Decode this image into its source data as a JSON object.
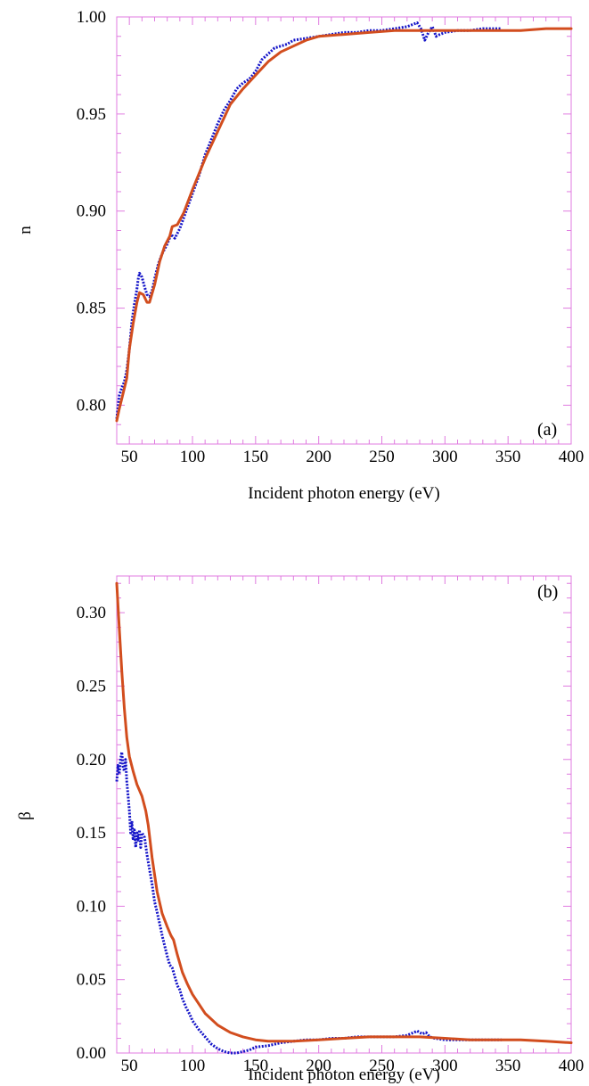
{
  "colors": {
    "frame": "#e07be0",
    "tick": "#e07be0",
    "measured": "#1414c8",
    "fit": "#d24d1e"
  },
  "chart_data": [
    {
      "type": "line",
      "panel_label": "(a)",
      "xlabel": "Incident photon energy (eV)",
      "ylabel": "n",
      "xlim": [
        40,
        400
      ],
      "ylim": [
        0.78,
        1.0
      ],
      "x_ticks": [
        50,
        100,
        150,
        200,
        250,
        300,
        350,
        400
      ],
      "x_tick_labels": [
        "50",
        "100",
        "150",
        "200",
        "250",
        "300",
        "350",
        "400"
      ],
      "y_ticks": [
        0.8,
        0.85,
        0.9,
        0.95,
        1.0
      ],
      "y_tick_labels": [
        "0.80",
        "0.85",
        "0.90",
        "0.95",
        "1.00"
      ],
      "grid": false,
      "series": [
        {
          "style": "dotted",
          "color": "#1414c8",
          "points": [
            [
              40,
              0.793
            ],
            [
              42,
              0.805
            ],
            [
              44,
              0.809
            ],
            [
              46,
              0.812
            ],
            [
              48,
              0.818
            ],
            [
              50,
              0.829
            ],
            [
              52,
              0.843
            ],
            [
              54,
              0.852
            ],
            [
              56,
              0.86
            ],
            [
              57,
              0.865
            ],
            [
              58,
              0.868
            ],
            [
              60,
              0.866
            ],
            [
              62,
              0.861
            ],
            [
              64,
              0.857
            ],
            [
              66,
              0.856
            ],
            [
              68,
              0.859
            ],
            [
              70,
              0.865
            ],
            [
              73,
              0.873
            ],
            [
              76,
              0.878
            ],
            [
              80,
              0.883
            ],
            [
              83,
              0.888
            ],
            [
              86,
              0.886
            ],
            [
              90,
              0.891
            ],
            [
              95,
              0.9
            ],
            [
              100,
              0.909
            ],
            [
              105,
              0.918
            ],
            [
              110,
              0.929
            ],
            [
              115,
              0.937
            ],
            [
              120,
              0.945
            ],
            [
              125,
              0.952
            ],
            [
              130,
              0.957
            ],
            [
              135,
              0.963
            ],
            [
              140,
              0.966
            ],
            [
              145,
              0.968
            ],
            [
              150,
              0.972
            ],
            [
              155,
              0.978
            ],
            [
              160,
              0.981
            ],
            [
              165,
              0.984
            ],
            [
              170,
              0.985
            ],
            [
              175,
              0.986
            ],
            [
              180,
              0.988
            ],
            [
              190,
              0.989
            ],
            [
              200,
              0.99
            ],
            [
              210,
              0.991
            ],
            [
              220,
              0.992
            ],
            [
              230,
              0.992
            ],
            [
              240,
              0.993
            ],
            [
              250,
              0.993
            ],
            [
              260,
              0.994
            ],
            [
              270,
              0.995
            ],
            [
              278,
              0.997
            ],
            [
              281,
              0.994
            ],
            [
              284,
              0.988
            ],
            [
              287,
              0.992
            ],
            [
              290,
              0.995
            ],
            [
              293,
              0.99
            ],
            [
              296,
              0.991
            ],
            [
              300,
              0.992
            ],
            [
              310,
              0.993
            ],
            [
              320,
              0.993
            ],
            [
              330,
              0.994
            ],
            [
              340,
              0.994
            ],
            [
              345,
              0.994
            ]
          ]
        },
        {
          "style": "solid",
          "color": "#d24d1e",
          "points": [
            [
              40,
              0.792
            ],
            [
              42,
              0.798
            ],
            [
              45,
              0.806
            ],
            [
              48,
              0.814
            ],
            [
              50,
              0.829
            ],
            [
              53,
              0.842
            ],
            [
              56,
              0.853
            ],
            [
              58,
              0.858
            ],
            [
              61,
              0.857
            ],
            [
              64,
              0.853
            ],
            [
              66,
              0.853
            ],
            [
              70,
              0.862
            ],
            [
              74,
              0.874
            ],
            [
              78,
              0.882
            ],
            [
              82,
              0.887
            ],
            [
              84,
              0.892
            ],
            [
              88,
              0.893
            ],
            [
              93,
              0.899
            ],
            [
              100,
              0.911
            ],
            [
              110,
              0.927
            ],
            [
              120,
              0.941
            ],
            [
              130,
              0.955
            ],
            [
              140,
              0.963
            ],
            [
              150,
              0.97
            ],
            [
              160,
              0.977
            ],
            [
              170,
              0.982
            ],
            [
              180,
              0.985
            ],
            [
              190,
              0.988
            ],
            [
              200,
              0.99
            ],
            [
              220,
              0.991
            ],
            [
              240,
              0.992
            ],
            [
              260,
              0.993
            ],
            [
              280,
              0.993
            ],
            [
              300,
              0.993
            ],
            [
              320,
              0.993
            ],
            [
              340,
              0.993
            ],
            [
              360,
              0.993
            ],
            [
              380,
              0.994
            ],
            [
              400,
              0.994
            ]
          ]
        }
      ]
    },
    {
      "type": "line",
      "panel_label": "(b)",
      "xlabel": "Incident photon energy (eV)",
      "ylabel": "β",
      "xlim": [
        40,
        400
      ],
      "ylim": [
        0,
        0.325
      ],
      "x_ticks": [
        50,
        100,
        150,
        200,
        250,
        300,
        350,
        400
      ],
      "x_tick_labels": [
        "50",
        "100",
        "150",
        "200",
        "250",
        "300",
        "350",
        "400"
      ],
      "y_ticks": [
        0,
        0.05,
        0.1,
        0.15,
        0.2,
        0.25,
        0.3
      ],
      "y_tick_labels": [
        "0.00",
        "0.05",
        "0.10",
        "0.15",
        "0.20",
        "0.25",
        "0.30"
      ],
      "grid": false,
      "series": [
        {
          "style": "dotted",
          "color": "#1414c8",
          "points": [
            [
              40,
              0.185
            ],
            [
              41,
              0.196
            ],
            [
              42,
              0.19
            ],
            [
              43,
              0.2
            ],
            [
              44,
              0.205
            ],
            [
              45,
              0.195
            ],
            [
              46,
              0.192
            ],
            [
              47,
              0.2
            ],
            [
              48,
              0.185
            ],
            [
              49,
              0.175
            ],
            [
              50,
              0.165
            ],
            [
              51,
              0.15
            ],
            [
              52,
              0.158
            ],
            [
              53,
              0.145
            ],
            [
              54,
              0.152
            ],
            [
              55,
              0.14
            ],
            [
              56,
              0.15
            ],
            [
              57,
              0.145
            ],
            [
              58,
              0.152
            ],
            [
              59,
              0.14
            ],
            [
              60,
              0.15
            ],
            [
              62,
              0.147
            ],
            [
              64,
              0.135
            ],
            [
              66,
              0.125
            ],
            [
              68,
              0.115
            ],
            [
              70,
              0.103
            ],
            [
              72,
              0.096
            ],
            [
              74,
              0.088
            ],
            [
              76,
              0.08
            ],
            [
              78,
              0.073
            ],
            [
              80,
              0.066
            ],
            [
              82,
              0.06
            ],
            [
              84,
              0.058
            ],
            [
              86,
              0.052
            ],
            [
              88,
              0.046
            ],
            [
              90,
              0.043
            ],
            [
              92,
              0.037
            ],
            [
              95,
              0.031
            ],
            [
              98,
              0.026
            ],
            [
              100,
              0.022
            ],
            [
              105,
              0.016
            ],
            [
              110,
              0.011
            ],
            [
              115,
              0.006
            ],
            [
              120,
              0.003
            ],
            [
              125,
              0.001
            ],
            [
              130,
              0.0
            ],
            [
              135,
              0.0
            ],
            [
              140,
              0.001
            ],
            [
              145,
              0.002
            ],
            [
              150,
              0.004
            ],
            [
              160,
              0.005
            ],
            [
              170,
              0.007
            ],
            [
              180,
              0.008
            ],
            [
              190,
              0.009
            ],
            [
              200,
              0.009
            ],
            [
              210,
              0.01
            ],
            [
              220,
              0.01
            ],
            [
              230,
              0.011
            ],
            [
              240,
              0.011
            ],
            [
              250,
              0.011
            ],
            [
              260,
              0.011
            ],
            [
              270,
              0.012
            ],
            [
              278,
              0.015
            ],
            [
              282,
              0.013
            ],
            [
              285,
              0.014
            ],
            [
              288,
              0.011
            ],
            [
              292,
              0.01
            ],
            [
              300,
              0.009
            ],
            [
              310,
              0.009
            ],
            [
              320,
              0.009
            ],
            [
              330,
              0.009
            ],
            [
              340,
              0.009
            ],
            [
              345,
              0.009
            ]
          ]
        },
        {
          "style": "solid",
          "color": "#d24d1e",
          "points": [
            [
              40,
              0.32
            ],
            [
              42,
              0.29
            ],
            [
              44,
              0.26
            ],
            [
              46,
              0.235
            ],
            [
              48,
              0.215
            ],
            [
              50,
              0.202
            ],
            [
              53,
              0.192
            ],
            [
              56,
              0.183
            ],
            [
              60,
              0.175
            ],
            [
              63,
              0.165
            ],
            [
              65,
              0.155
            ],
            [
              68,
              0.133
            ],
            [
              72,
              0.11
            ],
            [
              76,
              0.095
            ],
            [
              80,
              0.086
            ],
            [
              83,
              0.08
            ],
            [
              85,
              0.077
            ],
            [
              88,
              0.067
            ],
            [
              92,
              0.055
            ],
            [
              96,
              0.047
            ],
            [
              100,
              0.04
            ],
            [
              110,
              0.027
            ],
            [
              120,
              0.019
            ],
            [
              130,
              0.014
            ],
            [
              140,
              0.011
            ],
            [
              150,
              0.009
            ],
            [
              160,
              0.008
            ],
            [
              170,
              0.008
            ],
            [
              180,
              0.008
            ],
            [
              200,
              0.009
            ],
            [
              220,
              0.01
            ],
            [
              240,
              0.011
            ],
            [
              260,
              0.011
            ],
            [
              280,
              0.011
            ],
            [
              300,
              0.01
            ],
            [
              320,
              0.009
            ],
            [
              340,
              0.009
            ],
            [
              360,
              0.009
            ],
            [
              380,
              0.008
            ],
            [
              400,
              0.007
            ]
          ]
        }
      ]
    }
  ]
}
